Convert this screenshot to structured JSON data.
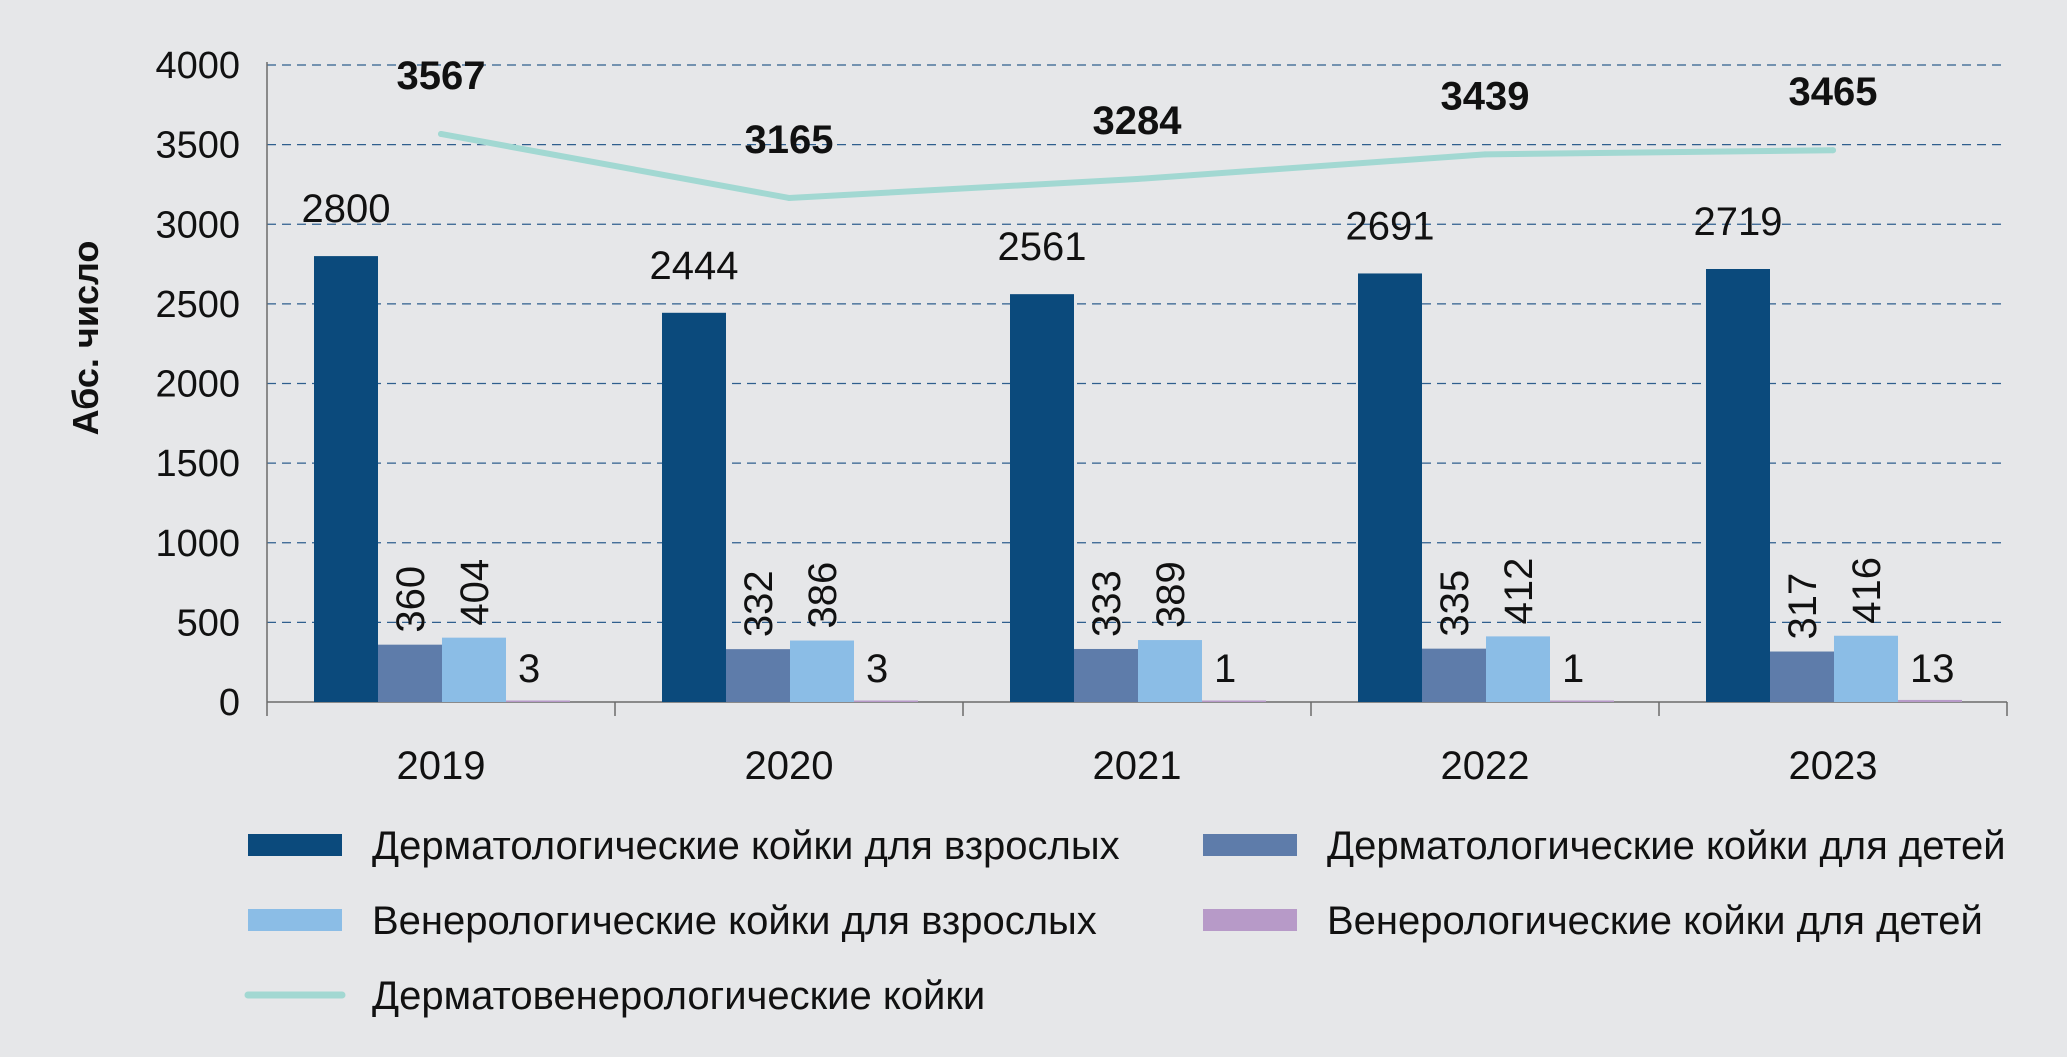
{
  "chart_data": {
    "type": "bar",
    "ylabel": "Абс. число",
    "ylim": [
      0,
      4000
    ],
    "yticks": [
      0,
      500,
      1000,
      1500,
      2000,
      2500,
      3000,
      3500,
      4000
    ],
    "grid": true,
    "legend_position": "bottom",
    "categories": [
      "2019",
      "2020",
      "2021",
      "2022",
      "2023"
    ],
    "series": [
      {
        "name": "Дерматологические койки для взрослых",
        "kind": "bar",
        "color": "#0b4a7c",
        "values": [
          2800,
          2444,
          2561,
          2691,
          2719
        ],
        "labels": [
          "2800",
          "2444",
          "2561",
          "2691",
          "2719"
        ]
      },
      {
        "name": "Дерматологические койки для детей",
        "kind": "bar",
        "color": "#5e7caa",
        "values": [
          360,
          332,
          333,
          335,
          317
        ],
        "labels": [
          "360",
          "332",
          "333",
          "335",
          "317"
        ]
      },
      {
        "name": "Венерологические койки для взрослых",
        "kind": "bar",
        "color": "#8bbde6",
        "values": [
          404,
          386,
          389,
          412,
          416
        ],
        "labels": [
          "404",
          "386",
          "389",
          "412",
          "416"
        ]
      },
      {
        "name": "Венерологические койки для детей",
        "kind": "bar",
        "color": "#b79ac8",
        "values": [
          3,
          3,
          1,
          1,
          13
        ],
        "labels": [
          "3",
          "3",
          "1",
          "1",
          "13"
        ]
      },
      {
        "name": "Дерматовенерологические койки",
        "kind": "line",
        "color": "#a2d8d2",
        "values": [
          3567,
          3165,
          3284,
          3439,
          3465
        ],
        "labels": [
          "3567",
          "3165",
          "3284",
          "3439",
          "3465"
        ]
      }
    ]
  },
  "colors": {
    "background": "#e6e7e9",
    "grid": "#2f5f8e",
    "axis": "#6b6b6b",
    "text": "#111111"
  }
}
